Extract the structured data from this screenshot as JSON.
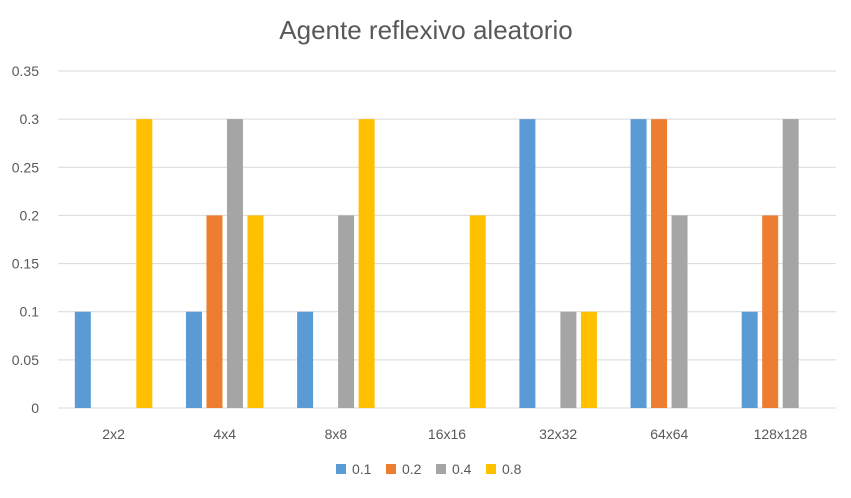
{
  "chart_data": {
    "type": "bar",
    "title": "Agente reflexivo aleatorio",
    "xlabel": "",
    "ylabel": "",
    "categories": [
      "2x2",
      "4x4",
      "8x8",
      "16x16",
      "32x32",
      "64x64",
      "128x128"
    ],
    "series": [
      {
        "name": "0.1",
        "color": "#5b9bd5",
        "values": [
          0.1,
          0.1,
          0.1,
          0,
          0.3,
          0.3,
          0.1
        ]
      },
      {
        "name": "0.2",
        "color": "#ed7d31",
        "values": [
          0,
          0.2,
          0,
          0,
          0,
          0.3,
          0.2
        ]
      },
      {
        "name": "0.4",
        "color": "#a5a5a5",
        "values": [
          0,
          0.3,
          0.2,
          0,
          0.1,
          0.2,
          0.3
        ]
      },
      {
        "name": "0.8",
        "color": "#ffc000",
        "values": [
          0.3,
          0.2,
          0.3,
          0.2,
          0.1,
          0,
          0
        ]
      }
    ],
    "ylim": [
      0,
      0.35
    ],
    "yticks": [
      "0",
      "0.05",
      "0.1",
      "0.15",
      "0.2",
      "0.25",
      "0.3",
      "0.35"
    ],
    "grid": true,
    "legend": "bottom"
  }
}
